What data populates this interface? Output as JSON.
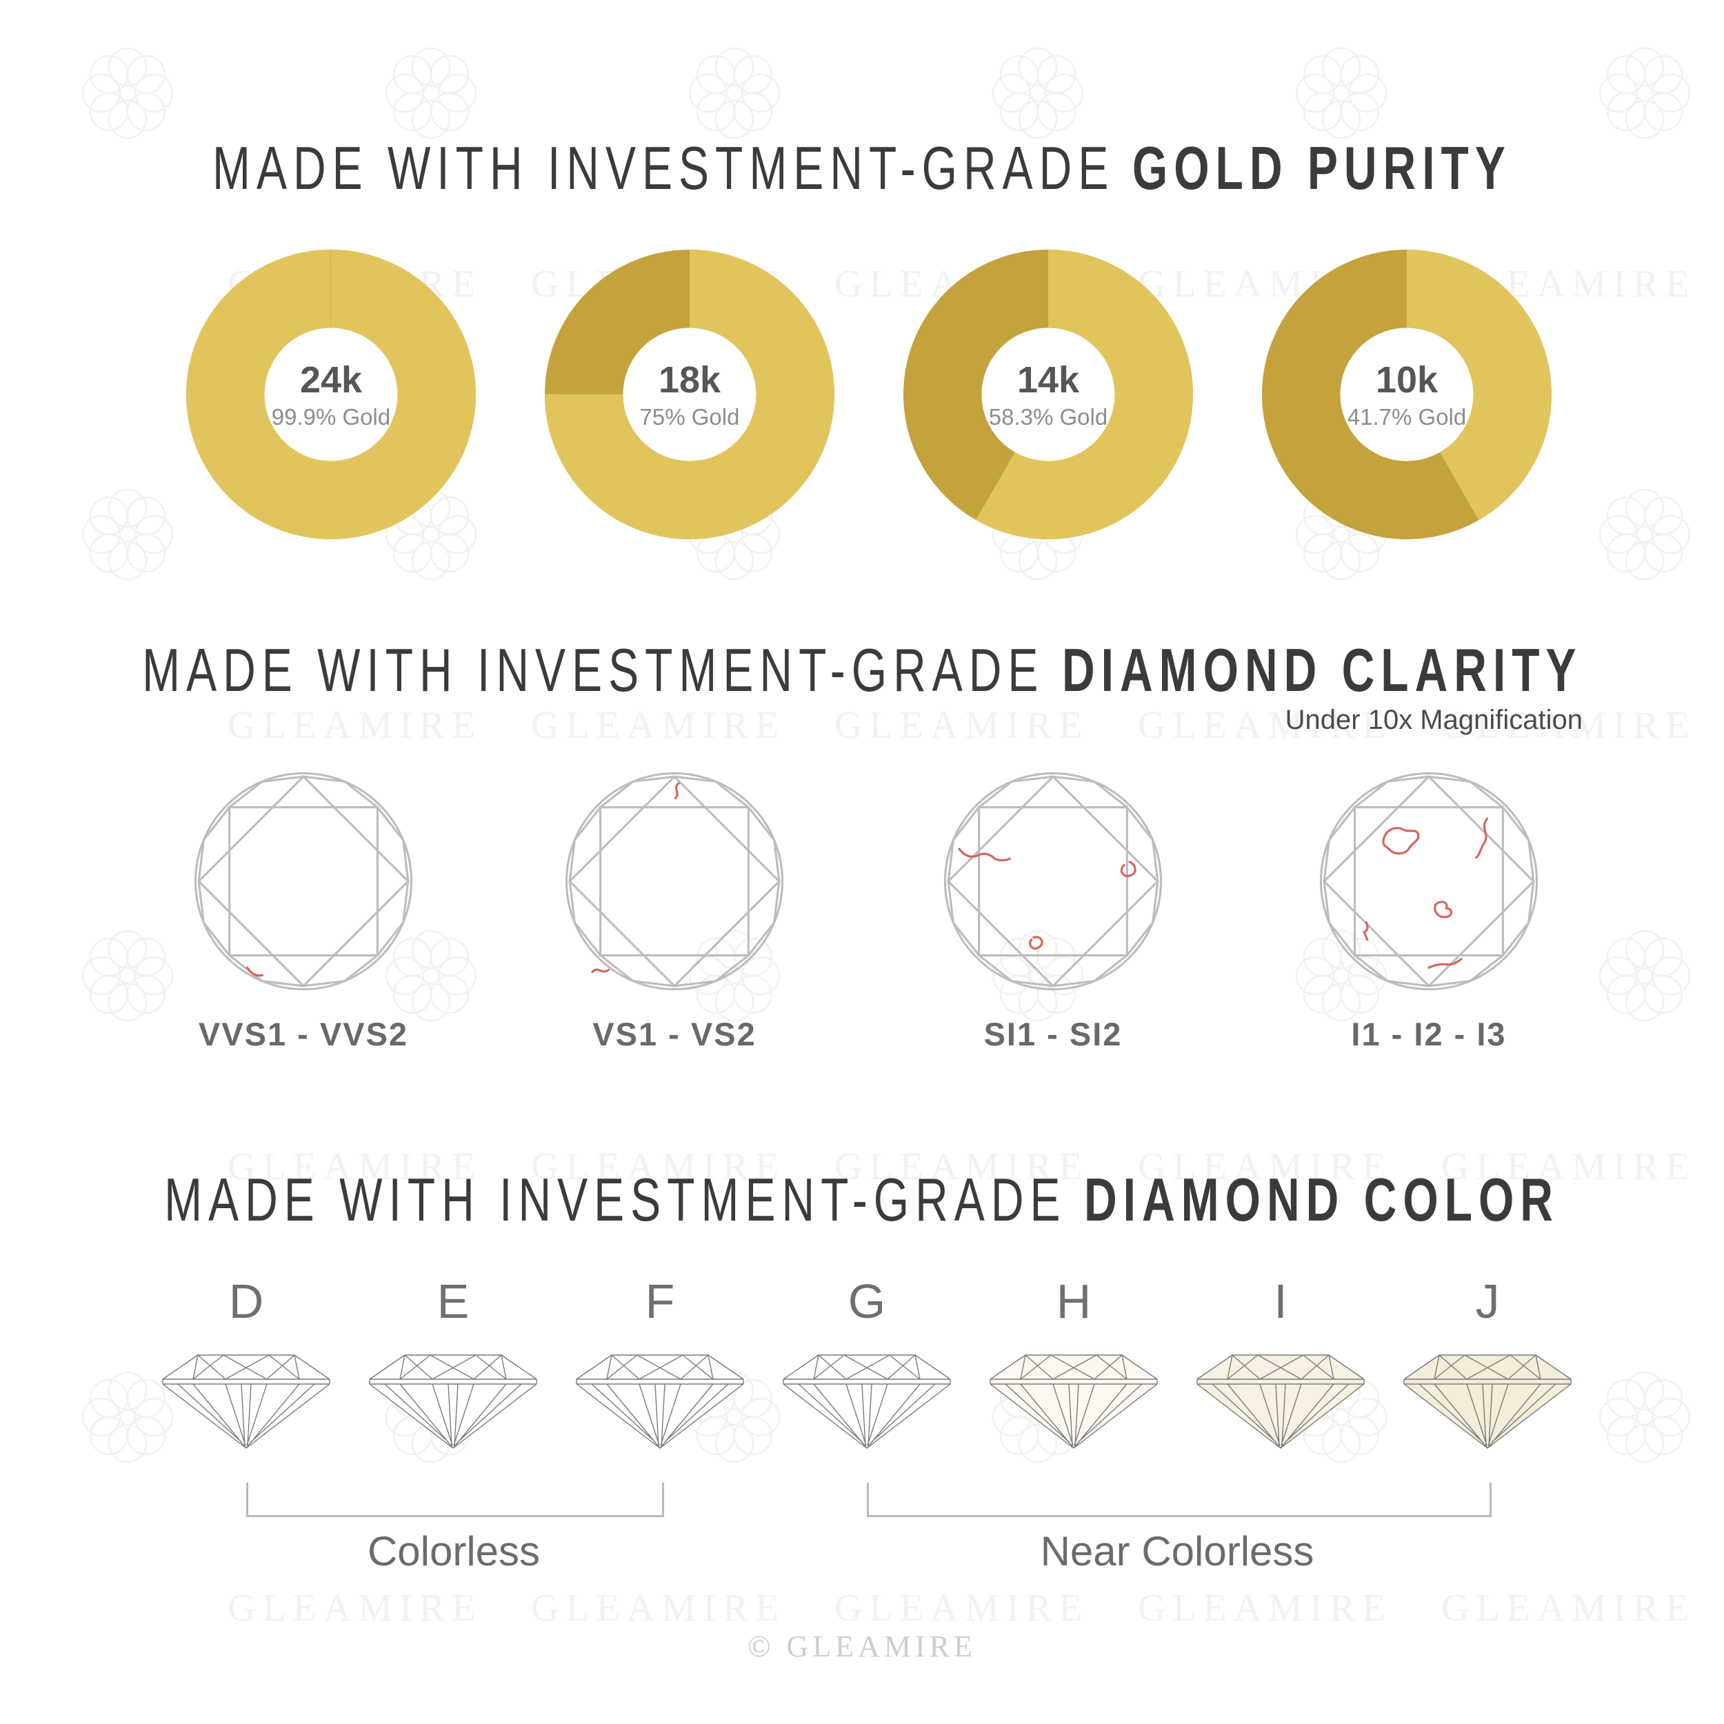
{
  "brand": {
    "watermark_text": "GLEAMIRE",
    "footer": "© GLEAMIRE"
  },
  "sections": {
    "gold_purity": {
      "title_regular": "MADE WITH INVESTMENT-GRADE",
      "title_bold": "GOLD PURITY",
      "items": [
        {
          "karat": "24k",
          "purity": "99.9% Gold",
          "gold_pct": 99.9
        },
        {
          "karat": "18k",
          "purity": "75% Gold",
          "gold_pct": 75
        },
        {
          "karat": "14k",
          "purity": "58.3% Gold",
          "gold_pct": 58.3
        },
        {
          "karat": "10k",
          "purity": "41.7% Gold",
          "gold_pct": 41.7
        }
      ],
      "colors": {
        "gold": "#e2c45c",
        "alloy": "#c4a23c"
      }
    },
    "diamond_clarity": {
      "title_regular": "MADE WITH INVESTMENT-GRADE",
      "title_bold": "DIAMOND CLARITY",
      "subtitle": "Under 10x Magnification",
      "grades": [
        {
          "label": "VVS1 - VVS2"
        },
        {
          "label": "VS1 - VS2"
        },
        {
          "label": "SI1 - SI2"
        },
        {
          "label": "I1 - I2 - I3"
        }
      ],
      "inclusion_color": "#d9635a"
    },
    "diamond_color": {
      "title_regular": "MADE WITH INVESTMENT-GRADE",
      "title_bold": "DIAMOND COLOR",
      "grades": [
        "D",
        "E",
        "F",
        "G",
        "H",
        "I",
        "J"
      ],
      "groups": [
        {
          "label": "Colorless"
        },
        {
          "label": "Near Colorless"
        }
      ]
    }
  },
  "chart_data": {
    "type": "pie",
    "title": "Gold purity donut charts",
    "series": [
      {
        "name": "24k",
        "slices": [
          {
            "label": "Gold",
            "value": 99.9
          },
          {
            "label": "Alloy",
            "value": 0.1
          }
        ]
      },
      {
        "name": "18k",
        "slices": [
          {
            "label": "Gold",
            "value": 75
          },
          {
            "label": "Alloy",
            "value": 25
          }
        ]
      },
      {
        "name": "14k",
        "slices": [
          {
            "label": "Gold",
            "value": 58.3
          },
          {
            "label": "Alloy",
            "value": 41.7
          }
        ]
      },
      {
        "name": "10k",
        "slices": [
          {
            "label": "Gold",
            "value": 41.7
          },
          {
            "label": "Alloy",
            "value": 58.3
          }
        ]
      }
    ],
    "colors": {
      "Gold": "#e2c45c",
      "Alloy": "#c4a23c"
    },
    "legend_position": "none"
  }
}
